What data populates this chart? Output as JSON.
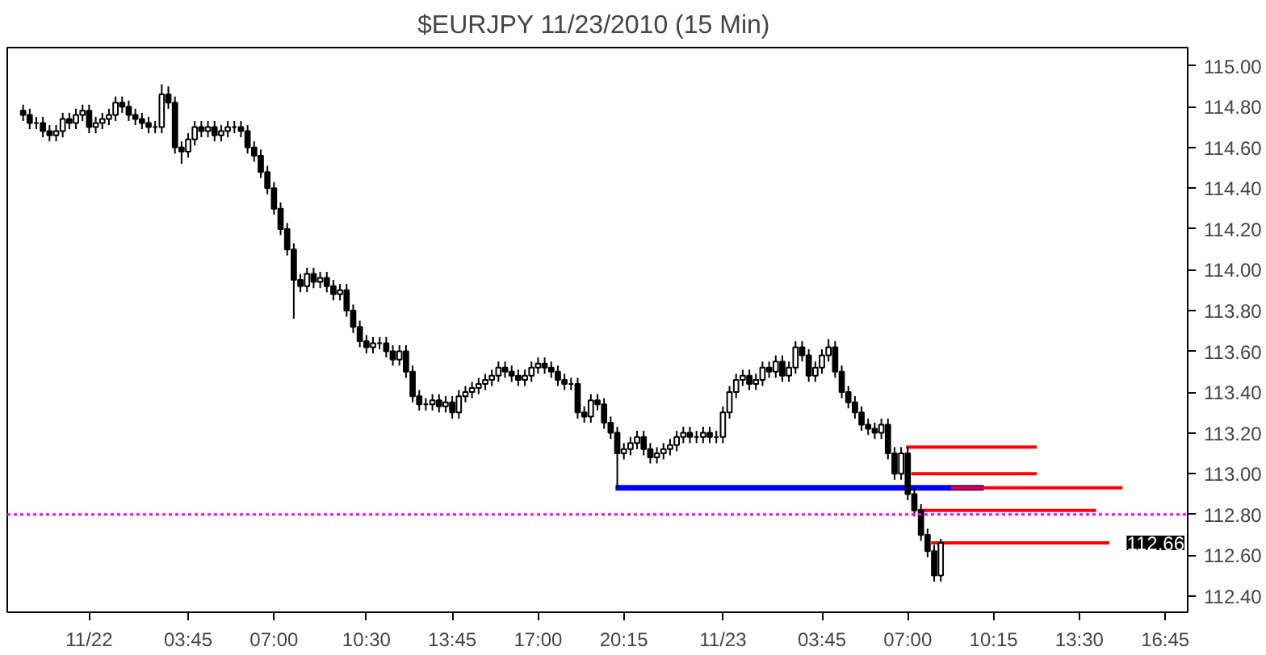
{
  "chart_data": {
    "type": "candlestick",
    "title": "$EURJPY  11/23/2010 (15 Min)",
    "x": [
      "2010-11-21T21:30",
      "2010-11-21T21:45",
      "2010-11-21T22:00",
      "2010-11-21T22:15",
      "2010-11-21T22:30",
      "2010-11-21T22:45",
      "2010-11-21T23:00",
      "2010-11-21T23:15",
      "2010-11-21T23:30",
      "2010-11-21T23:45",
      "2010-11-22T00:00",
      "2010-11-22T00:15",
      "2010-11-22T00:30",
      "2010-11-22T00:45",
      "2010-11-22T01:00",
      "2010-11-22T01:15",
      "2010-11-22T01:30",
      "2010-11-22T01:45",
      "2010-11-22T02:00",
      "2010-11-22T02:15",
      "2010-11-22T02:30",
      "2010-11-22T02:45",
      "2010-11-22T03:00",
      "2010-11-22T03:15",
      "2010-11-22T03:30",
      "2010-11-22T03:45",
      "2010-11-22T04:00",
      "2010-11-22T04:15",
      "2010-11-22T04:30",
      "2010-11-22T04:45",
      "2010-11-22T05:00",
      "2010-11-22T05:15",
      "2010-11-22T05:30",
      "2010-11-22T05:45",
      "2010-11-22T06:00",
      "2010-11-22T06:15",
      "2010-11-22T06:30",
      "2010-11-22T06:45",
      "2010-11-22T07:00",
      "2010-11-22T07:15",
      "2010-11-22T07:30",
      "2010-11-22T07:45",
      "2010-11-22T08:00",
      "2010-11-22T08:15",
      "2010-11-22T08:30",
      "2010-11-22T08:45",
      "2010-11-22T09:00",
      "2010-11-22T09:15",
      "2010-11-22T09:30",
      "2010-11-22T09:45",
      "2010-11-22T10:00",
      "2010-11-22T10:15",
      "2010-11-22T10:30",
      "2010-11-22T10:45",
      "2010-11-22T11:00",
      "2010-11-22T11:15",
      "2010-11-22T11:30",
      "2010-11-22T11:45",
      "2010-11-22T12:00",
      "2010-11-22T12:15",
      "2010-11-22T12:30",
      "2010-11-22T12:45",
      "2010-11-22T13:00",
      "2010-11-22T13:15",
      "2010-11-22T13:30",
      "2010-11-22T13:45",
      "2010-11-22T14:00",
      "2010-11-22T14:15",
      "2010-11-22T14:30",
      "2010-11-22T14:45",
      "2010-11-22T15:00",
      "2010-11-22T15:15",
      "2010-11-22T15:30",
      "2010-11-22T15:45",
      "2010-11-22T16:00",
      "2010-11-22T16:15",
      "2010-11-22T16:30",
      "2010-11-22T16:45",
      "2010-11-22T17:00",
      "2010-11-22T17:15",
      "2010-11-22T17:30",
      "2010-11-22T17:45",
      "2010-11-22T18:00",
      "2010-11-22T18:15",
      "2010-11-22T18:30",
      "2010-11-22T18:45",
      "2010-11-22T19:00",
      "2010-11-22T19:15",
      "2010-11-22T19:30",
      "2010-11-22T19:45",
      "2010-11-22T20:00",
      "2010-11-22T20:15",
      "2010-11-22T20:30",
      "2010-11-22T20:45",
      "2010-11-22T21:00",
      "2010-11-22T21:15",
      "2010-11-22T21:30",
      "2010-11-22T21:45",
      "2010-11-22T22:00",
      "2010-11-22T22:15",
      "2010-11-22T22:30",
      "2010-11-22T22:45",
      "2010-11-22T23:00",
      "2010-11-22T23:15",
      "2010-11-22T23:30",
      "2010-11-22T23:45",
      "2010-11-23T00:00",
      "2010-11-23T00:15",
      "2010-11-23T00:30",
      "2010-11-23T00:45",
      "2010-11-23T01:00",
      "2010-11-23T01:15",
      "2010-11-23T01:30",
      "2010-11-23T01:45",
      "2010-11-23T02:00",
      "2010-11-23T02:15",
      "2010-11-23T02:30",
      "2010-11-23T02:45",
      "2010-11-23T03:00",
      "2010-11-23T03:15",
      "2010-11-23T03:30",
      "2010-11-23T03:45",
      "2010-11-23T04:00",
      "2010-11-23T04:15",
      "2010-11-23T04:30",
      "2010-11-23T04:45",
      "2010-11-23T05:00",
      "2010-11-23T05:15",
      "2010-11-23T05:30",
      "2010-11-23T05:45",
      "2010-11-23T06:00",
      "2010-11-23T06:15",
      "2010-11-23T06:30",
      "2010-11-23T06:45",
      "2010-11-23T07:00",
      "2010-11-23T07:15",
      "2010-11-23T07:30",
      "2010-11-23T07:45",
      "2010-11-23T08:00",
      "2010-11-23T08:15"
    ],
    "ohlc": [
      [
        114.78,
        114.81,
        114.73,
        114.76
      ],
      [
        114.76,
        114.79,
        114.69,
        114.72
      ],
      [
        114.72,
        114.75,
        114.69,
        114.72
      ],
      [
        114.72,
        114.75,
        114.65,
        114.68
      ],
      [
        114.68,
        114.71,
        114.63,
        114.66
      ],
      [
        114.66,
        114.71,
        114.63,
        114.68
      ],
      [
        114.68,
        114.77,
        114.65,
        114.74
      ],
      [
        114.74,
        114.77,
        114.69,
        114.72
      ],
      [
        114.72,
        114.79,
        114.69,
        114.76
      ],
      [
        114.76,
        114.81,
        114.73,
        114.78
      ],
      [
        114.78,
        114.81,
        114.67,
        114.7
      ],
      [
        114.7,
        114.75,
        114.67,
        114.72
      ],
      [
        114.72,
        114.77,
        114.69,
        114.74
      ],
      [
        114.74,
        114.79,
        114.71,
        114.76
      ],
      [
        114.76,
        114.85,
        114.73,
        114.82
      ],
      [
        114.82,
        114.85,
        114.77,
        114.8
      ],
      [
        114.8,
        114.83,
        114.73,
        114.76
      ],
      [
        114.76,
        114.79,
        114.71,
        114.74
      ],
      [
        114.74,
        114.77,
        114.69,
        114.72
      ],
      [
        114.72,
        114.75,
        114.67,
        114.7
      ],
      [
        114.7,
        114.73,
        114.67,
        114.7
      ],
      [
        114.7,
        114.91,
        114.67,
        114.86
      ],
      [
        114.86,
        114.9,
        114.79,
        114.82
      ],
      [
        114.82,
        114.85,
        114.57,
        114.6
      ],
      [
        114.6,
        114.63,
        114.52,
        114.58
      ],
      [
        114.58,
        114.67,
        114.55,
        114.64
      ],
      [
        114.64,
        114.73,
        114.61,
        114.7
      ],
      [
        114.7,
        114.73,
        114.65,
        114.68
      ],
      [
        114.68,
        114.73,
        114.65,
        114.7
      ],
      [
        114.7,
        114.73,
        114.63,
        114.66
      ],
      [
        114.66,
        114.71,
        114.63,
        114.68
      ],
      [
        114.68,
        114.73,
        114.65,
        114.7
      ],
      [
        114.7,
        114.73,
        114.67,
        114.7
      ],
      [
        114.7,
        114.73,
        114.65,
        114.68
      ],
      [
        114.68,
        114.71,
        114.57,
        114.6
      ],
      [
        114.6,
        114.63,
        114.53,
        114.56
      ],
      [
        114.56,
        114.59,
        114.45,
        114.48
      ],
      [
        114.48,
        114.51,
        114.37,
        114.4
      ],
      [
        114.4,
        114.43,
        114.27,
        114.3
      ],
      [
        114.3,
        114.33,
        114.17,
        114.2
      ],
      [
        114.2,
        114.23,
        114.07,
        114.1
      ],
      [
        114.1,
        114.13,
        113.76,
        113.95
      ],
      [
        113.95,
        113.98,
        113.89,
        113.92
      ],
      [
        113.92,
        114.01,
        113.89,
        113.98
      ],
      [
        113.98,
        114.01,
        113.91,
        113.94
      ],
      [
        113.94,
        113.99,
        113.91,
        113.96
      ],
      [
        113.96,
        113.99,
        113.89,
        113.92
      ],
      [
        113.92,
        113.95,
        113.85,
        113.88
      ],
      [
        113.88,
        113.93,
        113.85,
        113.9
      ],
      [
        113.9,
        113.93,
        113.77,
        113.8
      ],
      [
        113.8,
        113.83,
        113.69,
        113.72
      ],
      [
        113.72,
        113.75,
        113.62,
        113.65
      ],
      [
        113.65,
        113.68,
        113.59,
        113.62
      ],
      [
        113.62,
        113.67,
        113.59,
        113.64
      ],
      [
        113.64,
        113.67,
        113.61,
        113.64
      ],
      [
        113.64,
        113.67,
        113.57,
        113.6
      ],
      [
        113.6,
        113.63,
        113.53,
        113.56
      ],
      [
        113.56,
        113.63,
        113.53,
        113.6
      ],
      [
        113.6,
        113.63,
        113.47,
        113.5
      ],
      [
        113.5,
        113.53,
        113.35,
        113.38
      ],
      [
        113.38,
        113.41,
        113.31,
        113.34
      ],
      [
        113.34,
        113.37,
        113.31,
        113.34
      ],
      [
        113.34,
        113.39,
        113.31,
        113.36
      ],
      [
        113.36,
        113.39,
        113.3,
        113.33
      ],
      [
        113.33,
        113.38,
        113.3,
        113.35
      ],
      [
        113.35,
        113.38,
        113.27,
        113.3
      ],
      [
        113.3,
        113.41,
        113.27,
        113.38
      ],
      [
        113.38,
        113.43,
        113.35,
        113.4
      ],
      [
        113.4,
        113.45,
        113.37,
        113.42
      ],
      [
        113.42,
        113.47,
        113.39,
        113.44
      ],
      [
        113.44,
        113.49,
        113.41,
        113.46
      ],
      [
        113.46,
        113.51,
        113.43,
        113.48
      ],
      [
        113.48,
        113.55,
        113.45,
        113.52
      ],
      [
        113.52,
        113.55,
        113.47,
        113.5
      ],
      [
        113.5,
        113.53,
        113.45,
        113.48
      ],
      [
        113.48,
        113.51,
        113.43,
        113.46
      ],
      [
        113.46,
        113.51,
        113.43,
        113.48
      ],
      [
        113.48,
        113.55,
        113.45,
        113.52
      ],
      [
        113.52,
        113.57,
        113.49,
        113.54
      ],
      [
        113.54,
        113.57,
        113.49,
        113.52
      ],
      [
        113.52,
        113.55,
        113.47,
        113.5
      ],
      [
        113.5,
        113.53,
        113.43,
        113.46
      ],
      [
        113.46,
        113.49,
        113.41,
        113.44
      ],
      [
        113.44,
        113.47,
        113.41,
        113.44
      ],
      [
        113.44,
        113.47,
        113.27,
        113.3
      ],
      [
        113.3,
        113.33,
        113.25,
        113.28
      ],
      [
        113.28,
        113.39,
        113.25,
        113.36
      ],
      [
        113.36,
        113.39,
        113.31,
        113.34
      ],
      [
        113.34,
        113.37,
        113.22,
        113.25
      ],
      [
        113.25,
        113.28,
        113.17,
        113.2
      ],
      [
        113.2,
        113.23,
        112.93,
        113.1
      ],
      [
        113.1,
        113.15,
        113.07,
        113.12
      ],
      [
        113.12,
        113.18,
        113.09,
        113.15
      ],
      [
        113.15,
        113.21,
        113.12,
        113.18
      ],
      [
        113.18,
        113.21,
        113.09,
        113.12
      ],
      [
        113.12,
        113.15,
        113.05,
        113.08
      ],
      [
        113.08,
        113.13,
        113.05,
        113.1
      ],
      [
        113.1,
        113.15,
        113.07,
        113.12
      ],
      [
        113.12,
        113.17,
        113.09,
        113.14
      ],
      [
        113.14,
        113.21,
        113.11,
        113.18
      ],
      [
        113.18,
        113.23,
        113.15,
        113.2
      ],
      [
        113.2,
        113.23,
        113.15,
        113.18
      ],
      [
        113.18,
        113.21,
        113.15,
        113.18
      ],
      [
        113.18,
        113.23,
        113.15,
        113.2
      ],
      [
        113.2,
        113.23,
        113.15,
        113.18
      ],
      [
        113.18,
        113.21,
        113.15,
        113.18
      ],
      [
        113.18,
        113.33,
        113.15,
        113.3
      ],
      [
        113.3,
        113.43,
        113.27,
        113.4
      ],
      [
        113.4,
        113.49,
        113.37,
        113.46
      ],
      [
        113.46,
        113.51,
        113.43,
        113.48
      ],
      [
        113.48,
        113.51,
        113.41,
        113.44
      ],
      [
        113.44,
        113.49,
        113.41,
        113.46
      ],
      [
        113.46,
        113.55,
        113.43,
        113.52
      ],
      [
        113.52,
        113.55,
        113.47,
        113.5
      ],
      [
        113.5,
        113.58,
        113.47,
        113.55
      ],
      [
        113.55,
        113.58,
        113.45,
        113.48
      ],
      [
        113.48,
        113.55,
        113.45,
        113.52
      ],
      [
        113.52,
        113.65,
        113.49,
        113.62
      ],
      [
        113.62,
        113.65,
        113.55,
        113.58
      ],
      [
        113.58,
        113.61,
        113.45,
        113.48
      ],
      [
        113.48,
        113.55,
        113.45,
        113.52
      ],
      [
        113.52,
        113.61,
        113.49,
        113.58
      ],
      [
        113.58,
        113.66,
        113.55,
        113.62
      ],
      [
        113.62,
        113.65,
        113.47,
        113.5
      ],
      [
        113.5,
        113.53,
        113.37,
        113.4
      ],
      [
        113.4,
        113.43,
        113.32,
        113.35
      ],
      [
        113.35,
        113.38,
        113.27,
        113.3
      ],
      [
        113.3,
        113.33,
        113.21,
        113.24
      ],
      [
        113.24,
        113.27,
        113.19,
        113.22
      ],
      [
        113.22,
        113.25,
        113.17,
        113.2
      ],
      [
        113.2,
        113.27,
        113.17,
        113.24
      ],
      [
        113.24,
        113.27,
        113.07,
        113.1
      ],
      [
        113.1,
        113.13,
        112.97,
        113.0
      ],
      [
        113.0,
        113.13,
        112.97,
        113.1
      ],
      [
        113.1,
        113.13,
        112.87,
        112.9
      ],
      [
        112.9,
        112.93,
        112.79,
        112.82
      ],
      [
        112.82,
        112.85,
        112.67,
        112.7
      ],
      [
        112.7,
        112.73,
        112.59,
        112.62
      ],
      [
        112.62,
        112.65,
        112.47,
        112.5
      ],
      [
        112.5,
        112.68,
        112.47,
        112.66
      ]
    ],
    "series": [
      {
        "type": "line",
        "color": "#0000ff",
        "x": [
          "2010-11-22T19:56",
          "2010-11-23T09:53"
        ],
        "values": [
          112.93,
          112.93
        ]
      },
      {
        "type": "line",
        "color": "#ff0000",
        "x": [
          "2010-11-23T06:56",
          "2010-11-23T11:53"
        ],
        "values": [
          113.13,
          113.13
        ]
      },
      {
        "type": "line",
        "color": "#ff0000",
        "x": [
          "2010-11-23T07:08",
          "2010-11-23T11:53"
        ],
        "values": [
          113.0,
          113.0
        ]
      },
      {
        "type": "line",
        "color": "#ff0000",
        "x": [
          "2010-11-23T08:38",
          "2010-11-23T15:08"
        ],
        "values": [
          112.93,
          112.93
        ]
      },
      {
        "type": "line",
        "color": "#ff0000",
        "x": [
          "2010-11-23T07:23",
          "2010-11-23T14:08"
        ],
        "values": [
          112.82,
          112.82
        ]
      },
      {
        "type": "line",
        "color": "#ff0000",
        "x": [
          "2010-11-23T07:53",
          "2010-11-23T14:38"
        ],
        "values": [
          112.66,
          112.66
        ]
      }
    ],
    "ref_lines": [
      {
        "axis": "y",
        "value": 112.8,
        "color": "#ff00ff",
        "line_style": "dotted"
      }
    ],
    "annotations": [
      "112.66"
    ],
    "xlim": [
      "2010-11-21T20:54",
      "2010-11-23T17:36"
    ],
    "ylim": [
      112.32,
      115.09
    ],
    "xticks": [
      {
        "value": "2010-11-22",
        "label": "11/22"
      },
      {
        "value": "2010-11-22T03:45",
        "label": "03:45"
      },
      {
        "value": "2010-11-22T07:00",
        "label": "07:00"
      },
      {
        "value": "2010-11-22T10:30",
        "label": "10:30"
      },
      {
        "value": "2010-11-22T13:45",
        "label": "13:45"
      },
      {
        "value": "2010-11-22T17:00",
        "label": "17:00"
      },
      {
        "value": "2010-11-22T20:15",
        "label": "20:15"
      },
      {
        "value": "2010-11-23",
        "label": "11/23"
      },
      {
        "value": "2010-11-23T03:45",
        "label": "03:45"
      },
      {
        "value": "2010-11-23T07:00",
        "label": "07:00"
      },
      {
        "value": "2010-11-23T10:15",
        "label": "10:15"
      },
      {
        "value": "2010-11-23T13:30",
        "label": "13:30"
      },
      {
        "value": "2010-11-23T16:45",
        "label": "16:45"
      }
    ],
    "yticks": [
      {
        "value": 112.4,
        "label": "112.40"
      },
      {
        "value": 112.6,
        "label": "112.60"
      },
      {
        "value": 112.8,
        "label": "112.80"
      },
      {
        "value": 113.0,
        "label": "113.00"
      },
      {
        "value": 113.2,
        "label": "113.20"
      },
      {
        "value": 113.4,
        "label": "113.40"
      },
      {
        "value": 113.6,
        "label": "113.60"
      },
      {
        "value": 113.8,
        "label": "113.80"
      },
      {
        "value": 114.0,
        "label": "114.00"
      },
      {
        "value": 114.2,
        "label": "114.20"
      },
      {
        "value": 114.4,
        "label": "114.40"
      },
      {
        "value": 114.6,
        "label": "114.60"
      },
      {
        "value": 114.8,
        "label": "114.80"
      },
      {
        "value": 115.0,
        "label": "115.00"
      }
    ],
    "grid": false
  }
}
